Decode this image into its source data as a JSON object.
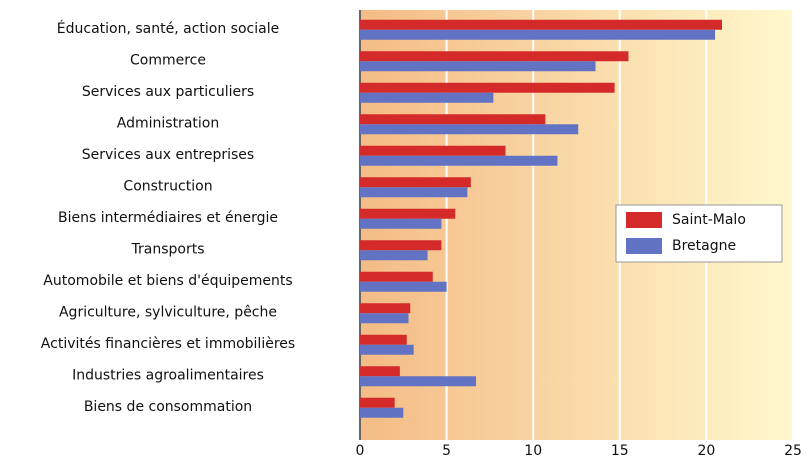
{
  "chart_data": {
    "type": "bar",
    "orientation": "horizontal",
    "categories": [
      "Éducation, santé, action sociale",
      "Commerce",
      "Services aux particuliers",
      "Administration",
      "Services aux entreprises",
      "Construction",
      "Biens intermédiaires et énergie",
      "Transports",
      "Automobile et biens d'équipements",
      "Agriculture, sylviculture, pêche",
      "Activités financières et immobilières",
      "Industries agroalimentaires",
      "Biens de consommation"
    ],
    "series": [
      {
        "name": "Saint-Malo",
        "color": "#d42a2a",
        "values": [
          20.9,
          15.5,
          14.7,
          10.7,
          8.4,
          6.4,
          5.5,
          4.7,
          4.2,
          2.9,
          2.7,
          2.3,
          2.0
        ]
      },
      {
        "name": "Bretagne",
        "color": "#6273c4",
        "values": [
          20.5,
          13.6,
          7.7,
          12.6,
          11.4,
          6.2,
          4.7,
          3.9,
          5.0,
          2.8,
          3.1,
          6.7,
          2.5
        ]
      }
    ],
    "xlim": [
      0,
      25
    ],
    "xticks": [
      0,
      5,
      10,
      15,
      20,
      25
    ],
    "grid": true,
    "legend": "right"
  }
}
